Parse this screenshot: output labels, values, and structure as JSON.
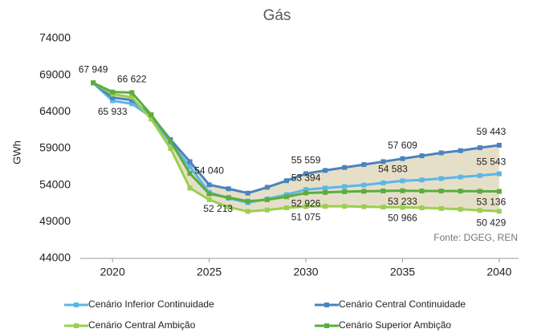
{
  "chart_data": {
    "type": "line",
    "title": "Gás",
    "y_label": "GWh",
    "source": "Fonte: DGEG, REN",
    "x": [
      2019,
      2020,
      2021,
      2022,
      2023,
      2024,
      2025,
      2026,
      2027,
      2028,
      2029,
      2030,
      2031,
      2032,
      2033,
      2034,
      2035,
      2036,
      2037,
      2038,
      2039,
      2040
    ],
    "xlim": [
      2018,
      2041
    ],
    "xticks": [
      2020,
      2025,
      2030,
      2035,
      2040
    ],
    "ylim": [
      44000,
      74000
    ],
    "yticks": [
      44000,
      49000,
      54000,
      59000,
      64000,
      69000,
      74000
    ],
    "fill_between": [
      "Cenário Central Continuidade",
      "Cenário Central Ambição"
    ],
    "fill_color": "#e6dfc8",
    "series": [
      {
        "name": "Cenário Inferior Continuidade",
        "color": "#5cb6e6",
        "values": [
          67949,
          65500,
          65100,
          63300,
          59800,
          56500,
          53000,
          52213,
          51600,
          52100,
          52700,
          53394,
          53600,
          53800,
          54000,
          54300,
          54583,
          54700,
          54900,
          55100,
          55300,
          55543
        ],
        "value_labels": [
          null,
          null,
          null,
          null,
          null,
          null,
          null,
          "52 213",
          null,
          null,
          null,
          "53 394",
          null,
          null,
          null,
          null,
          "54 583",
          null,
          null,
          null,
          null,
          "55 543"
        ]
      },
      {
        "name": "Cenário Central Continuidade",
        "color": "#4a84bd",
        "values": [
          67949,
          65933,
          65600,
          63500,
          60200,
          57200,
          54040,
          53500,
          52900,
          53700,
          54600,
          55559,
          56000,
          56400,
          56800,
          57200,
          57609,
          58000,
          58400,
          58700,
          59100,
          59443
        ],
        "value_labels": [
          "67 949",
          "65 933",
          null,
          null,
          null,
          null,
          "54 040",
          null,
          null,
          null,
          null,
          "55 559",
          null,
          null,
          null,
          null,
          "57 609",
          null,
          null,
          null,
          null,
          "59 443"
        ]
      },
      {
        "name": "Cenário Central Ambição",
        "color": "#9bcf50",
        "values": [
          67949,
          66400,
          66000,
          63000,
          59000,
          53600,
          52000,
          51000,
          50400,
          50600,
          50900,
          51075,
          51100,
          51100,
          51050,
          51000,
          50966,
          50900,
          50800,
          50700,
          50550,
          50429
        ],
        "value_labels": [
          null,
          null,
          null,
          null,
          null,
          null,
          null,
          null,
          null,
          null,
          null,
          "51 075",
          null,
          null,
          null,
          null,
          "50 966",
          null,
          null,
          null,
          null,
          "50 429"
        ]
      },
      {
        "name": "Cenário Superior Ambição",
        "color": "#5aad3e",
        "values": [
          67949,
          66700,
          66622,
          63600,
          60000,
          55600,
          52800,
          52300,
          51800,
          52000,
          52400,
          52926,
          53000,
          53100,
          53150,
          53200,
          53233,
          53200,
          53200,
          53180,
          53150,
          53136
        ],
        "value_labels": [
          null,
          null,
          "66 622",
          null,
          null,
          null,
          null,
          null,
          null,
          null,
          null,
          "52 926",
          null,
          null,
          null,
          null,
          "53 233",
          null,
          null,
          null,
          null,
          "53 136"
        ]
      }
    ]
  }
}
